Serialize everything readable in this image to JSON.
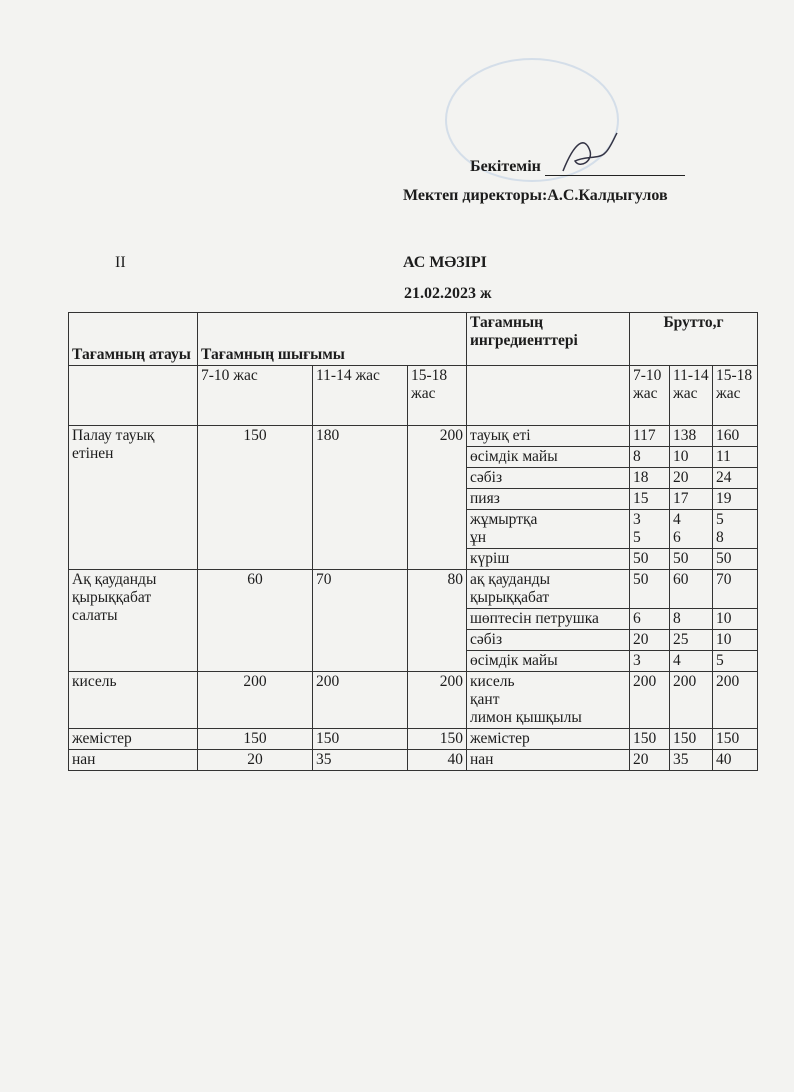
{
  "header": {
    "approve_label": "Бекітемін",
    "director_label": "Мектеп директоры:А.С.Калдыгулов",
    "roman": "II",
    "title": "АС МӘЗІРІ",
    "date": "21.02.2023 ж"
  },
  "table": {
    "h_name": "Тағамның атауы",
    "h_output": "Тағамның      шығымы",
    "h_ingr": "Тағамның ингредиенттері",
    "h_brutto": "Брутто,г",
    "age1": "7-10 жас",
    "age2": "11-14 жас",
    "age3": "15-18 жас",
    "bage1": "7-10 жас",
    "bage2": "11-14 жас",
    "bage3": "15-18 жас",
    "dishes": [
      {
        "name": "Палау тауық етінен",
        "o1": "150",
        "o2": "180",
        "o3": "200",
        "ingredients": [
          {
            "n": "тауық еті",
            "a": "117",
            "b": "138",
            "c": "160"
          },
          {
            "n": "өсімдік майы",
            "a": "8",
            "b": "10",
            "c": "11"
          },
          {
            "n": "сәбіз",
            "a": "18",
            "b": "20",
            "c": "24"
          },
          {
            "n": "пияз",
            "a": "15",
            "b": "17",
            "c": "19"
          },
          {
            "n": "жұмыртқа\nұн",
            "a": "3\n5",
            "b": "4\n6",
            "c": "5\n8"
          },
          {
            "n": "күріш",
            "a": "50",
            "b": "50",
            "c": "50"
          }
        ]
      },
      {
        "name": "Ақ қауданды қырыққабат салаты",
        "o1": "60",
        "o2": "70",
        "o3": "80",
        "ingredients": [
          {
            "n": "ақ қауданды қырыққабат",
            "a": "50",
            "b": "60",
            "c": "70"
          },
          {
            "n": "шөптесін петрушка",
            "a": "6",
            "b": "8",
            "c": "10"
          },
          {
            "n": "сәбіз",
            "a": "20",
            "b": "25",
            "c": "10"
          },
          {
            "n": "өсімдік майы",
            "a": "3",
            "b": "4",
            "c": "5"
          }
        ]
      },
      {
        "name": "кисель",
        "o1": "200",
        "o2": "200",
        "o3": "200",
        "ingredients": [
          {
            "n": "кисель\nқант\nлимон қышқылы",
            "a": "200",
            "b": "200",
            "c": "200"
          }
        ]
      },
      {
        "name": "жемістер",
        "o1": "150",
        "o2": "150",
        "o3": "150",
        "ingredients": [
          {
            "n": "жемістер",
            "a": "150",
            "b": "150",
            "c": "150"
          }
        ]
      },
      {
        "name": "нан",
        "o1": "20",
        "o2": "35",
        "o3": "40",
        "ingredients": [
          {
            "n": "нан",
            "a": "20",
            "b": "35",
            "c": "40"
          }
        ]
      }
    ]
  }
}
